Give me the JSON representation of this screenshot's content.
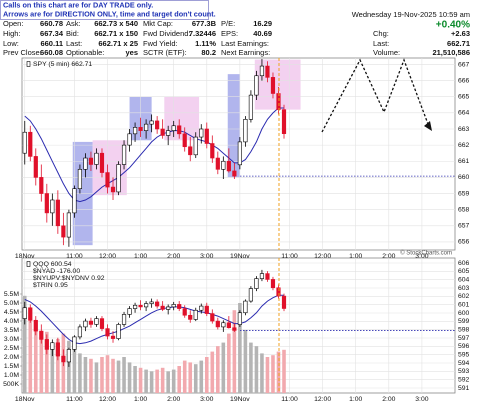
{
  "header": {
    "note": [
      "Calls on this chart are for DAY TRADE only.",
      "Arrows are for DIRECTION ONLY, time and target don't count."
    ],
    "columns": [
      [
        {
          "label": "Open:",
          "value": "660.78"
        },
        {
          "label": "High:",
          "value": "667.34"
        },
        {
          "label": "Low:",
          "value": "660.11"
        },
        {
          "label": "Prev Close:",
          "value": "660.08"
        }
      ],
      [
        {
          "label": "Ask:",
          "value": "662.73 x 540"
        },
        {
          "label": "Bid:",
          "value": "662.71 x 150"
        },
        {
          "label": "Last:",
          "value": "662.71 x 25"
        },
        {
          "label": "Optionable:",
          "value": "yes"
        }
      ],
      [
        {
          "label": "Mkt Cap:",
          "value": "677.3B"
        },
        {
          "label": "Fwd Dividend:",
          "value": "7.32446"
        },
        {
          "label": "Fwd Yield:",
          "value": "1.11%"
        },
        {
          "label": "SCTR (ETF):",
          "value": "80.2"
        }
      ],
      [
        {
          "label": "P/E:",
          "value": "16.29"
        },
        {
          "label": "EPS:",
          "value": "40.69"
        },
        {
          "label": "Last Earnings:"
        },
        {
          "label": "Next Earnings:"
        }
      ]
    ],
    "date": "Wednesday 19-Nov-2025 10:59 am",
    "change_pct": "+0.40%",
    "summary": [
      {
        "label": "Chg:",
        "value": "+2.63"
      },
      {
        "label": "Last:",
        "value": "662.71"
      },
      {
        "label": "Volume:",
        "value": "21,510,586"
      }
    ],
    "copyright": "© StockCharts.com"
  },
  "chart_data": [
    {
      "type": "candlestick",
      "legend": [
        "SPY (5 min) 662.71"
      ],
      "open": [
        661.5,
        662.8,
        661.3,
        660,
        659,
        657.8,
        658.6,
        657,
        656.3,
        657.8,
        659.3,
        660.5,
        661.2,
        660.8,
        661.5,
        660.3,
        659.4,
        659.1,
        660.8,
        662,
        662.7,
        663.1,
        662.9,
        663.3,
        663.5,
        663,
        662.6,
        662.9,
        663.2,
        662.7,
        661.9,
        661.4,
        662.5,
        663,
        662.1,
        661.2,
        660.5,
        661,
        660.4,
        660.78,
        662.2,
        663.6,
        665.1,
        666.3,
        666.9,
        666.2,
        665.2,
        664.2
      ],
      "high": [
        663.5,
        663.2,
        661.8,
        660.8,
        659.6,
        659,
        659.2,
        657.8,
        658,
        659.5,
        660.8,
        661.5,
        661.6,
        661.8,
        661.8,
        660.8,
        660,
        661,
        662.3,
        663,
        663.4,
        663.7,
        663.6,
        663.9,
        663.8,
        663.6,
        663.2,
        663.5,
        663.6,
        663.1,
        662.5,
        662.8,
        663.3,
        663.4,
        662.6,
        661.6,
        661.3,
        661.8,
        660.9,
        662.5,
        663.8,
        665.4,
        666.6,
        667.34,
        667.2,
        666.5,
        665.6,
        664.5
      ],
      "low": [
        660.8,
        661,
        659.5,
        658.5,
        657.2,
        657,
        656.5,
        655.8,
        655.7,
        657.5,
        659,
        660,
        660.4,
        660.5,
        660,
        659,
        658.6,
        658.9,
        660.5,
        661.6,
        662.2,
        662.5,
        662.4,
        662.8,
        662.7,
        662.4,
        662,
        662.5,
        662.4,
        661.6,
        661,
        661.2,
        662.1,
        661.8,
        660.9,
        660.2,
        659.9,
        660.3,
        659.9,
        660.5,
        661.9,
        663.4,
        664.8,
        666,
        665.9,
        664.9,
        663.9,
        662.4
      ],
      "close": [
        662.8,
        661.3,
        660,
        659,
        657.8,
        658.6,
        657,
        656.3,
        657.8,
        659.3,
        660.5,
        661.2,
        660.8,
        661.5,
        660.3,
        659.4,
        659.1,
        660.8,
        662,
        662.7,
        663.1,
        662.9,
        663.3,
        663.5,
        663,
        662.6,
        662.9,
        663.2,
        662.7,
        661.9,
        661.4,
        662.5,
        663,
        662.1,
        661.2,
        660.5,
        661,
        660.4,
        660.08,
        662.2,
        663.6,
        665.1,
        666.3,
        666.9,
        666.2,
        665.2,
        664.2,
        662.71
      ],
      "ma": {
        "color": "#2b2bb0",
        "values": [
          663.8,
          663.5,
          663,
          662.4,
          661.7,
          661,
          660.3,
          659.6,
          659,
          658.6,
          658.5,
          658.6,
          658.8,
          659.1,
          659.4,
          659.6,
          659.8,
          660,
          660.3,
          660.6,
          661,
          661.4,
          661.8,
          662.2,
          662.5,
          662.7,
          662.8,
          662.9,
          662.9,
          662.8,
          662.6,
          662.4,
          662.3,
          662.2,
          662,
          661.8,
          661.5,
          661.2,
          660.9,
          660.9,
          661.1,
          661.6,
          662.2,
          663,
          663.6,
          664,
          664.3,
          664.3
        ]
      },
      "zones": [
        {
          "x": [
            8.7,
            12.3
          ],
          "y": [
            655.8,
            662.2
          ],
          "color": "#9ea3e8"
        },
        {
          "x": [
            12.3,
            18.5
          ],
          "y": [
            658.9,
            662.3
          ],
          "color": "#f0c6ec"
        },
        {
          "x": [
            19,
            23
          ],
          "y": [
            662.3,
            665
          ],
          "color": "#9ea3e8"
        },
        {
          "x": [
            25.3,
            31.6
          ],
          "y": [
            662.3,
            665
          ],
          "color": "#f0c6ec"
        },
        {
          "x": [
            36.8,
            39
          ],
          "y": [
            660,
            666.4
          ],
          "color": "#9ea3e8"
        },
        {
          "x": [
            41.7,
            50
          ],
          "y": [
            664.2,
            667.3
          ],
          "color": "#f0c6ec"
        }
      ],
      "reference_line": {
        "value": 660.08,
        "color": "#3030b0"
      },
      "up_color": "#000000",
      "down_color": "#e0102a",
      "xlim": [
        -0.5,
        78
      ],
      "xticks": [
        {
          "value": 0,
          "label": "18Nov"
        },
        {
          "value": 9,
          "label": "11:00"
        },
        {
          "value": 15,
          "label": "12:00"
        },
        {
          "value": 21,
          "label": "1:00"
        },
        {
          "value": 27,
          "label": "2:00"
        },
        {
          "value": 33,
          "label": "3:00"
        },
        {
          "value": 39,
          "label": "19Nov"
        },
        {
          "value": 48,
          "label": "11:00"
        },
        {
          "value": 54,
          "label": "12:00"
        },
        {
          "value": 60,
          "label": "1:00"
        },
        {
          "value": 66,
          "label": "2:00"
        },
        {
          "value": 72,
          "label": "3:00"
        }
      ],
      "ylim": [
        655.5,
        667.4
      ],
      "yticks": [
        656,
        657,
        658,
        659,
        660,
        661,
        662,
        663,
        664,
        665,
        666,
        667
      ],
      "grid": true
    },
    {
      "type": "candlestick",
      "legend": [
        "QQQ 600.54",
        "$NYAD -176.00",
        "$NYUPV:$NYDNV 0.92",
        "$TRIN 0.95"
      ],
      "open": [
        599.33,
        600.63,
        599.13,
        597.83,
        596.83,
        595.63,
        596.43,
        594.83,
        594.13,
        595.63,
        597.13,
        598.33,
        599.03,
        598.63,
        599.33,
        598.13,
        597.23,
        596.93,
        598.63,
        599.83,
        600.53,
        600.93,
        600.73,
        601.13,
        601.33,
        600.83,
        600.43,
        600.73,
        601.03,
        600.53,
        599.73,
        599.23,
        600.33,
        600.83,
        599.93,
        599.03,
        598.33,
        598.83,
        598.23,
        598.61,
        600.03,
        601.43,
        602.93,
        604.13,
        604.73,
        604.03,
        603.03,
        602.03
      ],
      "high": [
        601.33,
        601.03,
        599.63,
        598.63,
        597.43,
        596.83,
        597.03,
        595.63,
        595.83,
        597.33,
        598.63,
        599.33,
        599.43,
        599.63,
        599.63,
        598.63,
        597.83,
        598.83,
        600.13,
        600.83,
        601.23,
        601.53,
        601.43,
        601.73,
        601.63,
        601.43,
        601.03,
        601.33,
        601.43,
        600.93,
        600.33,
        600.63,
        601.13,
        601.23,
        600.43,
        599.43,
        599.13,
        599.63,
        598.73,
        600.33,
        601.63,
        603.23,
        604.43,
        605.17,
        605.03,
        604.33,
        603.43,
        602.33
      ],
      "low": [
        598.63,
        598.83,
        597.33,
        596.33,
        595.03,
        594.83,
        594.33,
        593.63,
        593.53,
        595.33,
        596.83,
        597.83,
        598.23,
        598.33,
        597.83,
        596.83,
        596.43,
        596.73,
        598.33,
        599.43,
        600.03,
        600.33,
        600.23,
        600.63,
        600.53,
        600.23,
        599.83,
        600.33,
        600.23,
        599.43,
        598.83,
        599.03,
        599.93,
        599.63,
        598.73,
        598.03,
        597.73,
        598.13,
        597.73,
        598.33,
        599.73,
        601.23,
        602.63,
        603.83,
        603.73,
        602.73,
        601.73,
        600.23
      ],
      "close": [
        600.63,
        599.13,
        597.83,
        596.83,
        595.63,
        596.43,
        594.83,
        594.13,
        595.63,
        597.13,
        598.33,
        599.03,
        598.63,
        599.33,
        598.13,
        597.23,
        596.93,
        598.63,
        599.83,
        600.53,
        600.93,
        600.73,
        601.13,
        601.33,
        600.83,
        600.43,
        600.73,
        601.03,
        600.53,
        599.73,
        599.23,
        600.33,
        600.83,
        599.93,
        599.03,
        598.33,
        598.83,
        598.23,
        597.91,
        600.03,
        601.43,
        602.93,
        604.13,
        604.73,
        604.03,
        603.03,
        602.03,
        600.54
      ],
      "ma": {
        "color": "#2b2bb0",
        "values": [
          601.63,
          601.33,
          600.83,
          600.23,
          599.53,
          598.83,
          598.13,
          597.43,
          596.83,
          596.43,
          596.33,
          596.43,
          596.63,
          596.93,
          597.23,
          597.43,
          597.63,
          597.83,
          598.13,
          598.43,
          598.83,
          599.23,
          599.63,
          600.03,
          600.33,
          600.53,
          600.63,
          600.73,
          600.73,
          600.63,
          600.43,
          600.23,
          600.13,
          600.03,
          599.83,
          599.63,
          599.33,
          599.03,
          598.73,
          598.73,
          598.93,
          599.43,
          600.03,
          600.83,
          601.43,
          601.83,
          602.13,
          602.13
        ]
      },
      "reference_line": {
        "value": 597.91,
        "color": "#3030b0"
      },
      "up_color": "#000000",
      "down_color": "#e0102a",
      "volume": {
        "up_color": "#b4b4b4",
        "down_color": "#f2a9ae",
        "values": [
          5400000,
          4200000,
          3600000,
          3200000,
          3400000,
          2800000,
          3000000,
          3300000,
          2900000,
          2500000,
          2200000,
          2000000,
          1900000,
          1700000,
          2000000,
          2100000,
          1900000,
          1800000,
          2000000,
          1700000,
          1500000,
          1400000,
          1300000,
          1200000,
          1300000,
          1400000,
          1200000,
          1300000,
          1500000,
          1800000,
          1700000,
          1600000,
          1800000,
          2000000,
          2300000,
          2600000,
          2800000,
          3300000,
          4600000,
          5000000,
          3500000,
          2800000,
          2600000,
          2200000,
          2000000,
          2100000,
          2300000,
          2400000
        ],
        "ylim": [
          0,
          7500000
        ],
        "yticks": [
          {
            "value": 500000,
            "label": "500K"
          },
          {
            "value": 1000000,
            "label": "1.0M"
          },
          {
            "value": 1500000,
            "label": "1.5M"
          },
          {
            "value": 2000000,
            "label": "2.0M"
          },
          {
            "value": 2500000,
            "label": "2.5M"
          },
          {
            "value": 3000000,
            "label": "3.0M"
          },
          {
            "value": 3500000,
            "label": "3.5M"
          },
          {
            "value": 4000000,
            "label": "4.0M"
          },
          {
            "value": 4500000,
            "label": "4.5M"
          },
          {
            "value": 5000000,
            "label": "5.0M"
          },
          {
            "value": 5500000,
            "label": "5.5M"
          }
        ]
      },
      "xlim": [
        -0.5,
        78
      ],
      "xticks": [
        {
          "value": 0,
          "label": "18Nov"
        },
        {
          "value": 9,
          "label": "11:00"
        },
        {
          "value": 15,
          "label": "12:00"
        },
        {
          "value": 21,
          "label": "1:00"
        },
        {
          "value": 27,
          "label": "2:00"
        },
        {
          "value": 33,
          "label": "3:00"
        },
        {
          "value": 39,
          "label": "19Nov"
        },
        {
          "value": 48,
          "label": "11:00"
        },
        {
          "value": 54,
          "label": "12:00"
        },
        {
          "value": 60,
          "label": "1:00"
        },
        {
          "value": 66,
          "label": "2:00"
        },
        {
          "value": 72,
          "label": "3:00"
        }
      ],
      "ylim": [
        590.4,
        606.6
      ],
      "yticks": [
        591,
        592,
        593,
        594,
        595,
        596,
        597,
        598,
        599,
        600,
        601,
        602,
        603,
        604,
        605,
        606
      ],
      "grid": true
    }
  ]
}
